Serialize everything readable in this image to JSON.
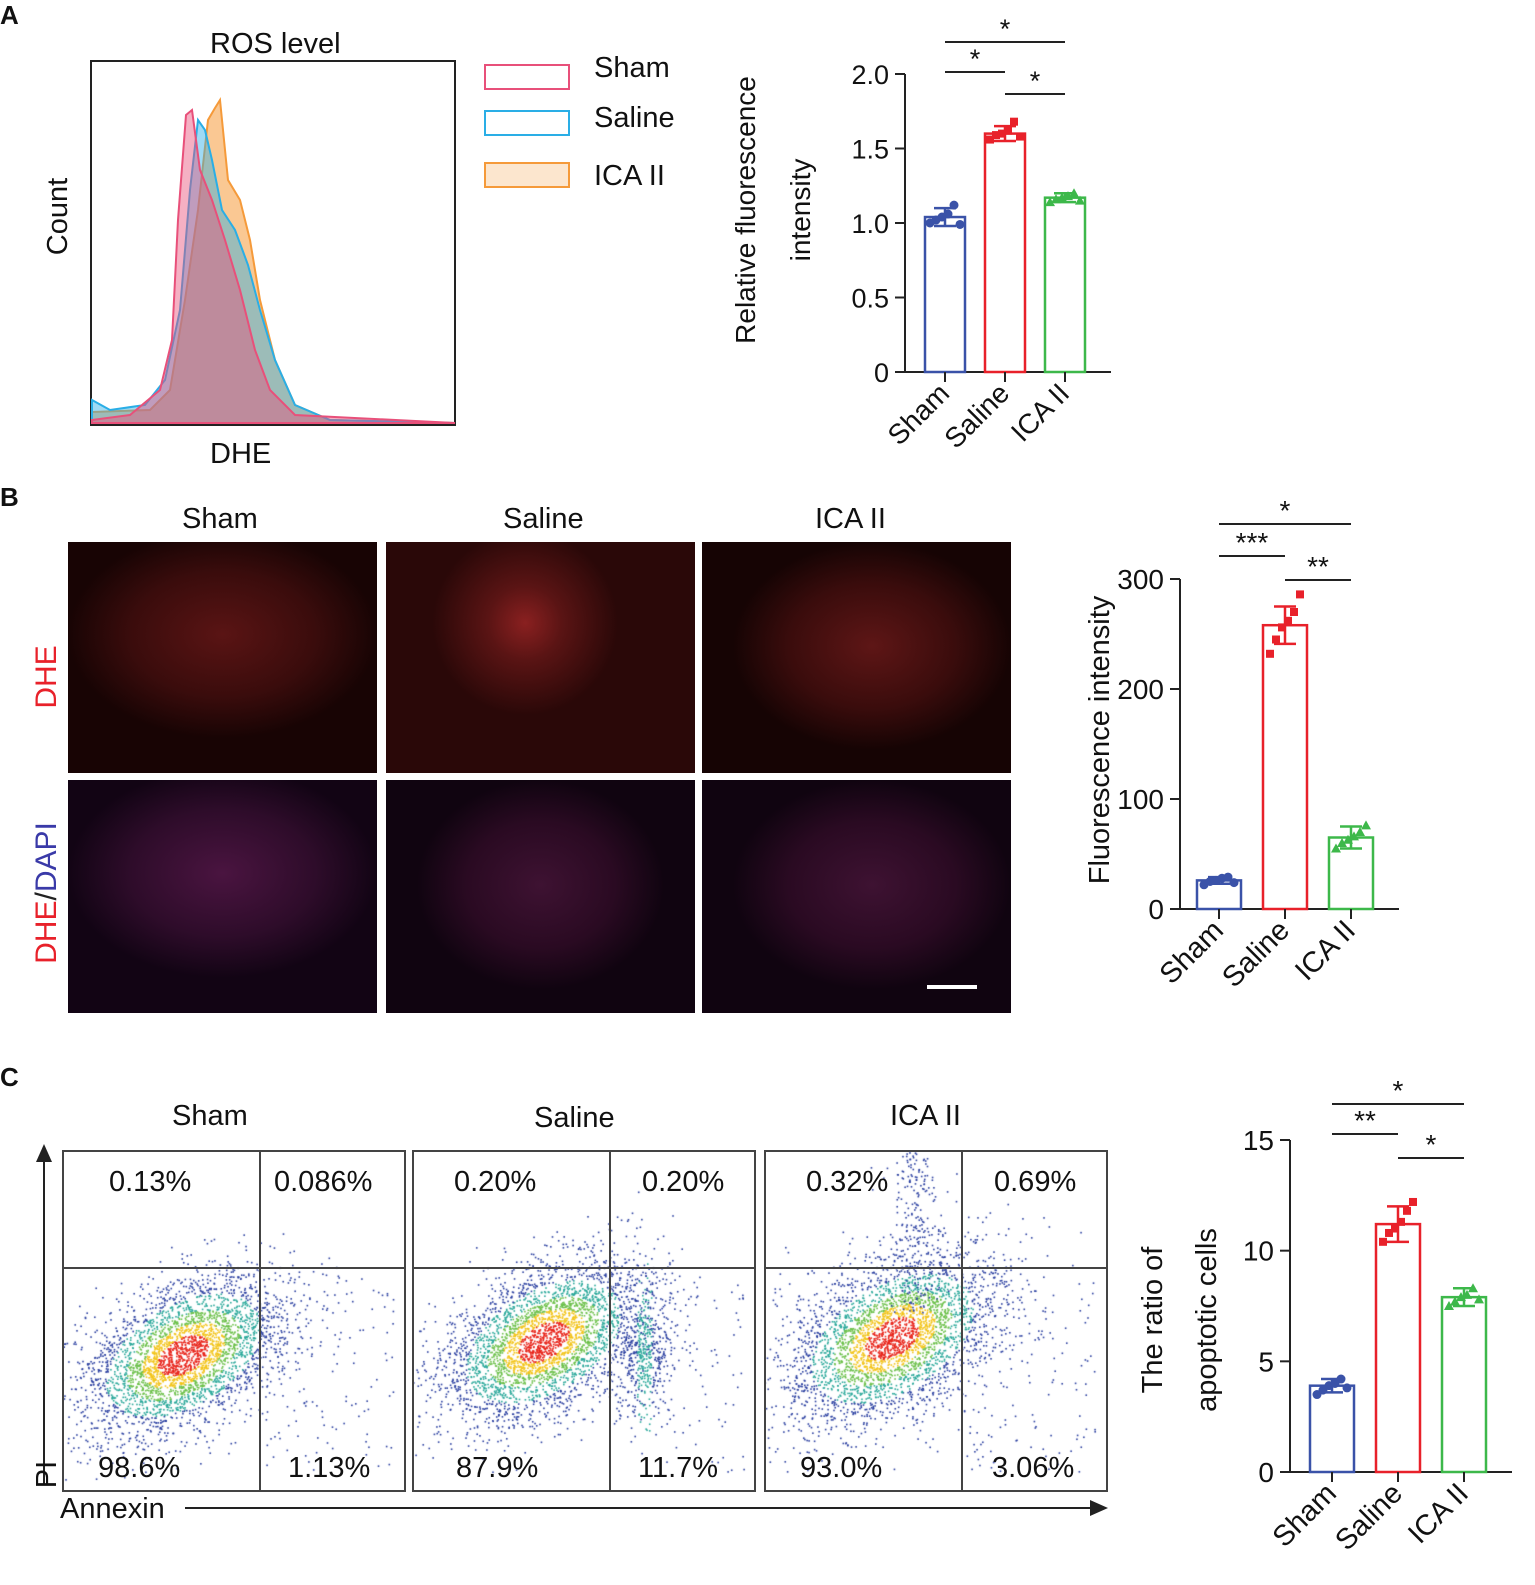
{
  "panels": {
    "A": {
      "letter": "A",
      "histogram": {
        "title": "ROS level",
        "xlabel": "DHE",
        "ylabel": "Count",
        "legend": [
          {
            "label": "Sham",
            "color": "#e8507a"
          },
          {
            "label": "Saline",
            "color": "#2aaee6"
          },
          {
            "label": "ICA II",
            "color": "#f59a3a"
          }
        ]
      }
    },
    "B": {
      "letter": "B",
      "columns": [
        "Sham",
        "Saline",
        "ICA II"
      ],
      "rows": [
        {
          "parts": [
            {
              "text": "DHE",
              "color": "#e8212a"
            }
          ]
        },
        {
          "parts": [
            {
              "text": "DHE",
              "color": "#e8212a"
            },
            {
              "text": "/",
              "color": "#222222"
            },
            {
              "text": "DAPI",
              "color": "#3a3aa8"
            }
          ]
        }
      ]
    },
    "C": {
      "letter": "C",
      "xaxis": "Annexin",
      "yaxis": "PI",
      "plots": [
        {
          "title": "Sham",
          "ul": "0.13%",
          "ur": "0.086%",
          "ll": "98.6%",
          "lr": "1.13%"
        },
        {
          "title": "Saline",
          "ul": "0.20%",
          "ur": "0.20%",
          "ll": "87.9%",
          "lr": "11.7%"
        },
        {
          "title": "ICA II",
          "ul": "0.32%",
          "ur": "0.69%",
          "ll": "93.0%",
          "lr": "3.06%"
        }
      ]
    }
  },
  "chart_data": [
    {
      "id": "A",
      "type": "bar",
      "categories": [
        "Sham",
        "Saline",
        "ICA II"
      ],
      "colors": [
        "#3a52a8",
        "#e8212a",
        "#3db84a"
      ],
      "values": [
        1.04,
        1.6,
        1.17
      ],
      "errors": [
        0.06,
        0.05,
        0.03
      ],
      "points": [
        [
          1.0,
          1.02,
          1.04,
          1.06,
          1.12,
          0.99
        ],
        [
          1.56,
          1.59,
          1.6,
          1.62,
          1.68,
          1.58
        ],
        [
          1.14,
          1.16,
          1.17,
          1.18,
          1.2,
          1.15
        ]
      ],
      "ylabel_lines": [
        "Relative fluorescence",
        "intensity"
      ],
      "ylim": [
        0,
        2.0
      ],
      "yticks": [
        "0",
        "0.5",
        "1.0",
        "1.5",
        "2.0"
      ],
      "significance": [
        {
          "from": 0,
          "to": 1,
          "label": "*"
        },
        {
          "from": 1,
          "to": 2,
          "label": "*"
        },
        {
          "from": 0,
          "to": 2,
          "label": "*"
        }
      ]
    },
    {
      "id": "B",
      "type": "bar",
      "categories": [
        "Sham",
        "Saline",
        "ICA II"
      ],
      "colors": [
        "#3a52a8",
        "#e8212a",
        "#3db84a"
      ],
      "values": [
        26,
        258,
        65
      ],
      "errors": [
        3,
        17,
        10
      ],
      "points": [
        [
          22,
          25,
          26,
          28,
          29,
          24
        ],
        [
          232,
          245,
          256,
          262,
          270,
          286
        ],
        [
          55,
          60,
          63,
          66,
          70,
          76
        ]
      ],
      "ylabel_lines": [
        "Fluorescence intensity"
      ],
      "ylim": [
        0,
        300
      ],
      "yticks": [
        "0",
        "100",
        "200",
        "300"
      ],
      "significance": [
        {
          "from": 0,
          "to": 1,
          "label": "***"
        },
        {
          "from": 1,
          "to": 2,
          "label": "**"
        },
        {
          "from": 0,
          "to": 2,
          "label": "*"
        }
      ]
    },
    {
      "id": "C",
      "type": "bar",
      "categories": [
        "Sham",
        "Saline",
        "ICA II"
      ],
      "colors": [
        "#3a52a8",
        "#e8212a",
        "#3db84a"
      ],
      "values": [
        3.9,
        11.2,
        7.9
      ],
      "errors": [
        0.3,
        0.8,
        0.4
      ],
      "points": [
        [
          3.5,
          3.7,
          3.9,
          4.0,
          4.2,
          3.8
        ],
        [
          10.4,
          10.8,
          11.0,
          11.3,
          11.8,
          12.2
        ],
        [
          7.5,
          7.7,
          7.9,
          8.0,
          8.3,
          7.8
        ]
      ],
      "ylabel_lines": [
        "The ratio of",
        "apoptotic cells"
      ],
      "ylim": [
        0,
        15
      ],
      "yticks": [
        "0",
        "5",
        "10",
        "15"
      ],
      "significance": [
        {
          "from": 0,
          "to": 1,
          "label": "**"
        },
        {
          "from": 1,
          "to": 2,
          "label": "*"
        },
        {
          "from": 0,
          "to": 2,
          "label": "*"
        }
      ]
    }
  ]
}
